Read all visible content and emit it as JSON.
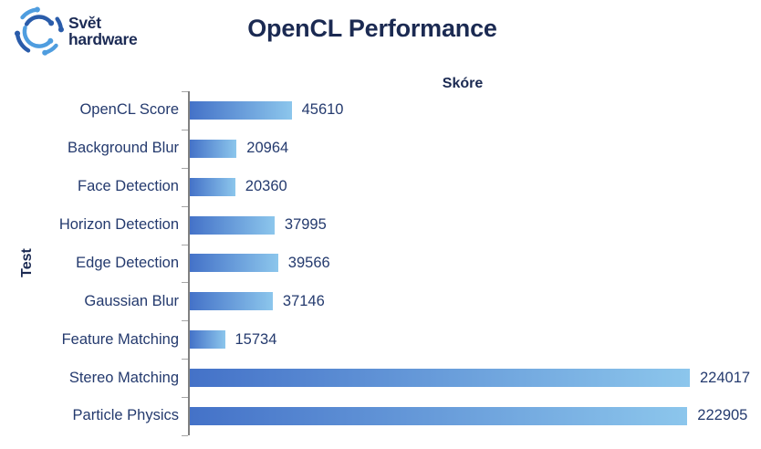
{
  "brand": {
    "line1": "Svět",
    "line2": "hardware"
  },
  "chart_data": {
    "type": "bar",
    "orientation": "horizontal",
    "title": "OpenCL Performance",
    "value_axis_label": "Skóre",
    "category_axis_label": "Test",
    "categories": [
      "OpenCL Score",
      "Background Blur",
      "Face Detection",
      "Horizon Detection",
      "Edge Detection",
      "Gaussian Blur",
      "Feature Matching",
      "Stereo Matching",
      "Particle Physics"
    ],
    "values": [
      45610,
      20964,
      20360,
      37995,
      39566,
      37146,
      15734,
      224017,
      222905
    ],
    "xlim": [
      0,
      230000
    ],
    "grid": false,
    "legend": false,
    "value_labels_shown": true,
    "bar_gradient": [
      "#4472c8",
      "#8cc6ec"
    ]
  },
  "colors": {
    "title_text": "#1b2a52",
    "label_text": "#243a6e",
    "axis_line": "#808080",
    "tick_mark": "#a6a6a6",
    "logo_dark": "#2a5caa",
    "logo_light": "#4f9ddf"
  }
}
